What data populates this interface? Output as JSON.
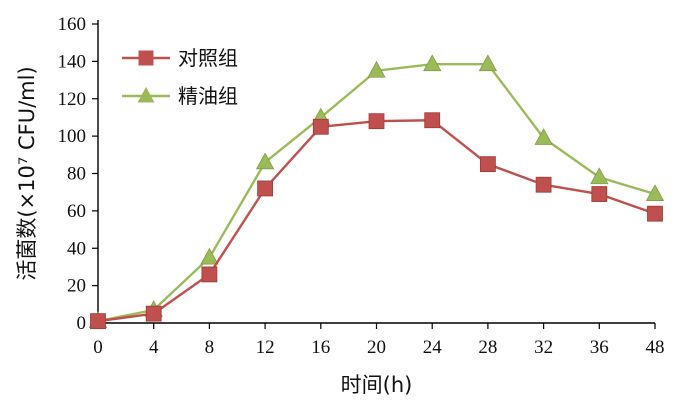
{
  "chart_data": {
    "type": "line",
    "xlabel": "时间(h)",
    "ylabel": "活菌数(×10⁷ CFU/ml)",
    "x": [
      0,
      4,
      8,
      12,
      16,
      20,
      24,
      28,
      32,
      36,
      48
    ],
    "x_tick_labels": [
      "0",
      "4",
      "8",
      "12",
      "16",
      "20",
      "24",
      "28",
      "32",
      "36",
      "48"
    ],
    "xlim": [
      0,
      48
    ],
    "ylim": [
      0,
      160
    ],
    "y_ticks": [
      0,
      20,
      40,
      60,
      80,
      100,
      120,
      140,
      160
    ],
    "grid": false,
    "legend_position": "top-left",
    "series": [
      {
        "name": "对照组",
        "marker": "square",
        "color": "#C0504D",
        "values": [
          1,
          5,
          26,
          72,
          105,
          108,
          108.5,
          85,
          74,
          69,
          58.5
        ]
      },
      {
        "name": "精油组",
        "marker": "triangle",
        "color": "#9BBB59",
        "values": [
          1,
          7,
          35,
          86,
          110,
          135,
          138.5,
          138.5,
          99,
          78,
          69
        ]
      }
    ]
  }
}
